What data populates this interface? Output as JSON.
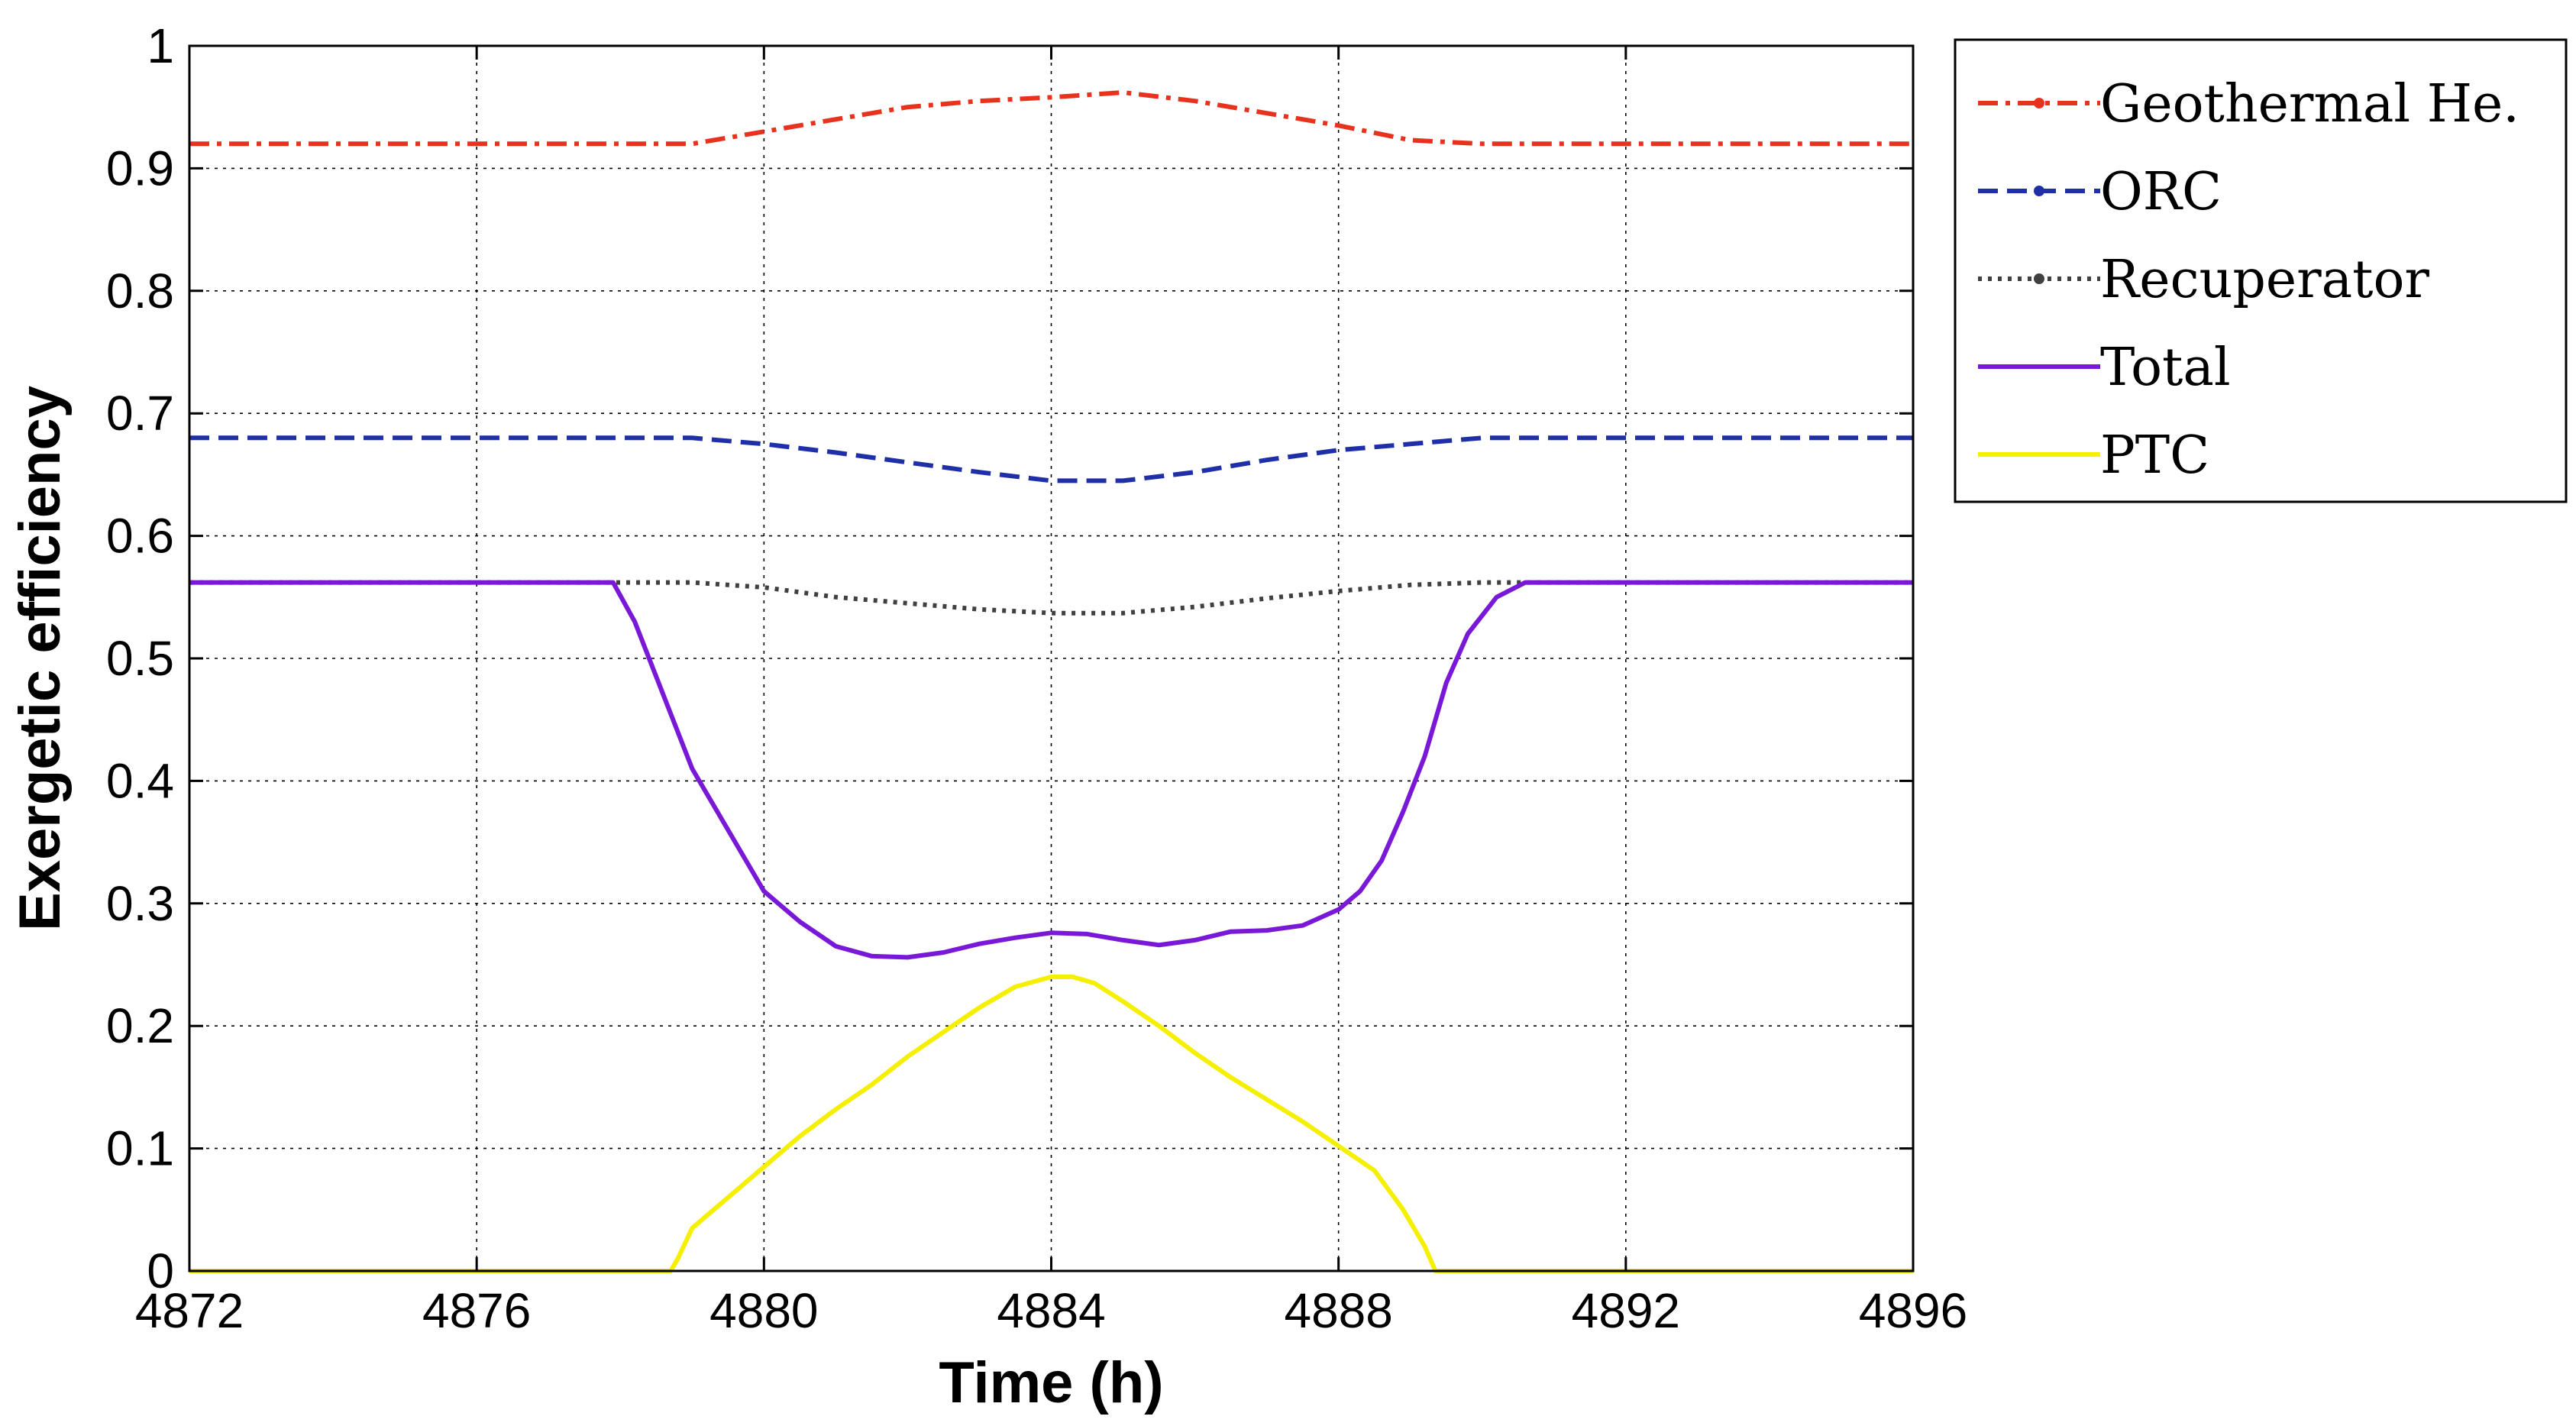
{
  "chart_data": {
    "type": "line",
    "xlabel": "Time (h)",
    "ylabel": "Exergetic efficiency",
    "xlim": [
      4872,
      4896
    ],
    "ylim": [
      0,
      1
    ],
    "xticks": [
      4872,
      4876,
      4880,
      4884,
      4888,
      4892,
      4896
    ],
    "yticks": [
      0,
      0.1,
      0.2,
      0.3,
      0.4,
      0.5,
      0.6,
      0.7,
      0.8,
      0.9,
      1
    ],
    "ytick_labels": [
      "0",
      "0.1",
      "0.2",
      "0.3",
      "0.4",
      "0.5",
      "0.6",
      "0.7",
      "0.8",
      "0.9",
      "1"
    ],
    "grid": true,
    "legend_position": "outside-right-top",
    "series": [
      {
        "name": "Geothermal He.",
        "color": "#e8321e",
        "style": "dashdot",
        "x": [
          4872,
          4878,
          4879,
          4880,
          4881,
          4882,
          4883,
          4884,
          4885,
          4886,
          4887,
          4888,
          4889,
          4890,
          4891,
          4896
        ],
        "y": [
          0.92,
          0.92,
          0.92,
          0.93,
          0.94,
          0.95,
          0.955,
          0.958,
          0.962,
          0.955,
          0.945,
          0.935,
          0.923,
          0.92,
          0.92,
          0.92
        ]
      },
      {
        "name": "ORC",
        "color": "#1f2fa8",
        "style": "dashed",
        "x": [
          4872,
          4879,
          4880,
          4881,
          4882,
          4883,
          4884,
          4885,
          4886,
          4887,
          4888,
          4889,
          4890,
          4896
        ],
        "y": [
          0.68,
          0.68,
          0.675,
          0.668,
          0.66,
          0.652,
          0.645,
          0.645,
          0.652,
          0.662,
          0.67,
          0.675,
          0.68,
          0.68
        ]
      },
      {
        "name": "Recuperator",
        "color": "#404040",
        "style": "dotted",
        "x": [
          4872,
          4879,
          4880,
          4881,
          4882,
          4883,
          4884,
          4885,
          4886,
          4887,
          4888,
          4889,
          4890,
          4896
        ],
        "y": [
          0.562,
          0.562,
          0.558,
          0.55,
          0.545,
          0.54,
          0.537,
          0.537,
          0.542,
          0.549,
          0.555,
          0.56,
          0.562,
          0.562
        ]
      },
      {
        "name": "Total",
        "color": "#7a18d8",
        "style": "solid",
        "x": [
          4872,
          4877.9,
          4878.2,
          4878.6,
          4879.0,
          4879.5,
          4880.0,
          4880.5,
          4881.0,
          4881.5,
          4882.0,
          4882.5,
          4883.0,
          4883.5,
          4884.0,
          4884.5,
          4885.0,
          4885.5,
          4886.0,
          4886.5,
          4887.0,
          4887.5,
          4888.0,
          4888.3,
          4888.6,
          4888.9,
          4889.2,
          4889.5,
          4889.8,
          4890.2,
          4890.6,
          4896
        ],
        "y": [
          0.562,
          0.562,
          0.53,
          0.47,
          0.41,
          0.36,
          0.31,
          0.285,
          0.265,
          0.257,
          0.256,
          0.26,
          0.267,
          0.272,
          0.276,
          0.275,
          0.27,
          0.266,
          0.27,
          0.277,
          0.278,
          0.282,
          0.295,
          0.31,
          0.335,
          0.375,
          0.42,
          0.48,
          0.52,
          0.55,
          0.562,
          0.562
        ]
      },
      {
        "name": "PTC",
        "color": "#f5f000",
        "style": "solid",
        "x": [
          4872,
          4878.7,
          4878.8,
          4879.0,
          4879.5,
          4880.0,
          4880.5,
          4881.0,
          4881.5,
          4882.0,
          4882.5,
          4883.0,
          4883.5,
          4884.0,
          4884.3,
          4884.6,
          4885.0,
          4885.5,
          4886.0,
          4886.5,
          4887.0,
          4887.5,
          4888.0,
          4888.5,
          4888.9,
          4889.2,
          4889.35,
          4896
        ],
        "y": [
          0,
          0,
          0.01,
          0.035,
          0.06,
          0.085,
          0.11,
          0.132,
          0.152,
          0.175,
          0.195,
          0.215,
          0.232,
          0.24,
          0.24,
          0.235,
          0.22,
          0.2,
          0.178,
          0.158,
          0.14,
          0.122,
          0.102,
          0.082,
          0.05,
          0.02,
          0,
          0
        ]
      }
    ]
  }
}
